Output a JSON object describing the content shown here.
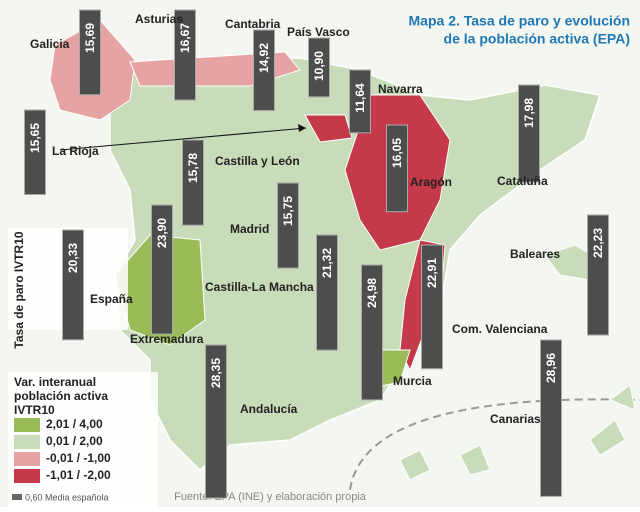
{
  "title": [
    "Mapa 2. Tasa de paro y evolución",
    "de la población activa (EPA)"
  ],
  "side_label": "Tasa de paro IVTR10",
  "legend": {
    "title": [
      "Var.  interanual",
      "población activa",
      "IVTR10"
    ],
    "classes": [
      {
        "label": "2,01 / 4,00",
        "color": "#9bbb59"
      },
      {
        "label": "0,01 / 2,00",
        "color": "#c9dcb9"
      },
      {
        "label": "-0,01 / -1,00",
        "color": "#e6a3a3"
      },
      {
        "label": "-1,01 / -2,00",
        "color": "#c43a4a"
      }
    ],
    "note": "0,60 Media española"
  },
  "source": "Fuente: EPA (INE) y elaboración propia",
  "regions": [
    {
      "name": "Galicia",
      "value": 15.69,
      "label": "15,69"
    },
    {
      "name": "Asturias",
      "value": 16.67,
      "label": "16,67"
    },
    {
      "name": "Cantabria",
      "value": 14.92,
      "label": "14,92"
    },
    {
      "name": "País Vasco",
      "value": 10.9,
      "label": "10,90"
    },
    {
      "name": "Navarra",
      "value": 11.64,
      "label": "11,64"
    },
    {
      "name": "La Rioja",
      "value": 15.65,
      "label": "15,65"
    },
    {
      "name": "Castilla y León",
      "value": 15.78,
      "label": "15,78"
    },
    {
      "name": "Aragón",
      "value": 16.05,
      "label": "16,05"
    },
    {
      "name": "Cataluña",
      "value": 17.98,
      "label": "17,98"
    },
    {
      "name": "Madrid",
      "value": 15.75,
      "label": "15,75"
    },
    {
      "name": "España",
      "value": 20.33,
      "label": "20,33"
    },
    {
      "name": "Extremadura",
      "value": 23.9,
      "label": "23,90"
    },
    {
      "name": "Castilla-La Mancha",
      "value": 21.32,
      "label": "21,32"
    },
    {
      "name": "Baleares",
      "value": 22.23,
      "label": "22,23"
    },
    {
      "name": "Com. Valenciana",
      "value": 22.91,
      "label": "22,91"
    },
    {
      "name": "Murcia",
      "value": 24.98,
      "label": "24,98"
    },
    {
      "name": "Andalucía",
      "value": 28.35,
      "label": "28,35"
    },
    {
      "name": "Canarias",
      "value": 28.96,
      "label": "28,96"
    }
  ]
}
